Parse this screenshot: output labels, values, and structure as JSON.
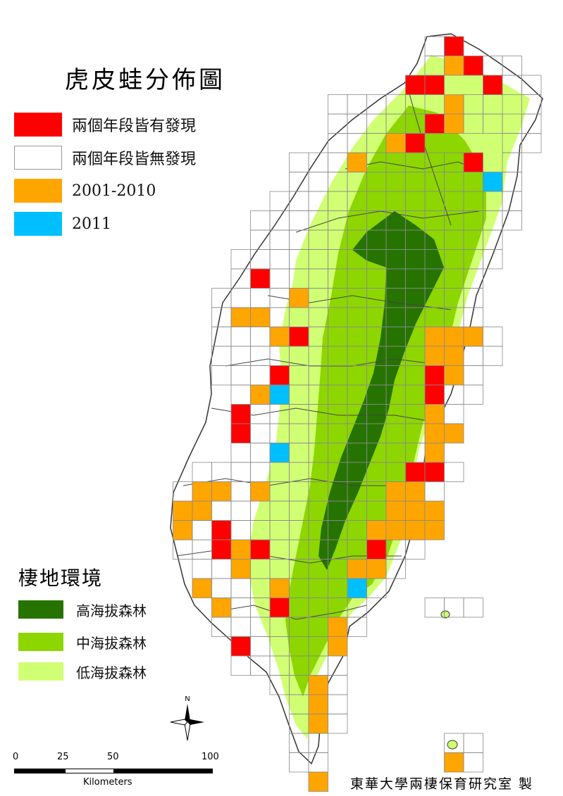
{
  "title": "虎皮蛙分佈圖",
  "legend": {
    "items": [
      {
        "label": "兩個年段皆有發現",
        "color": "#ff0000"
      },
      {
        "label": "兩個年段皆無發現",
        "color": "#ffffff"
      },
      {
        "label": "2001-2010",
        "color": "#ffa500"
      },
      {
        "label": "2011",
        "color": "#00bfff"
      }
    ]
  },
  "habitat": {
    "title": "棲地環境",
    "items": [
      {
        "label": "高海拔森林",
        "color": "#267300"
      },
      {
        "label": "中海拔森林",
        "color": "#8dd600"
      },
      {
        "label": "低海拔森林",
        "color": "#d1ff73"
      }
    ]
  },
  "scale_bar": {
    "ticks": [
      "0",
      "25",
      "50",
      "100"
    ],
    "unit": "Kilometers"
  },
  "north_arrow": {
    "label": "N"
  },
  "credit": "東華大學兩棲保育研究室 製",
  "icons": {
    "north_arrow": "compass-rose-icon"
  }
}
